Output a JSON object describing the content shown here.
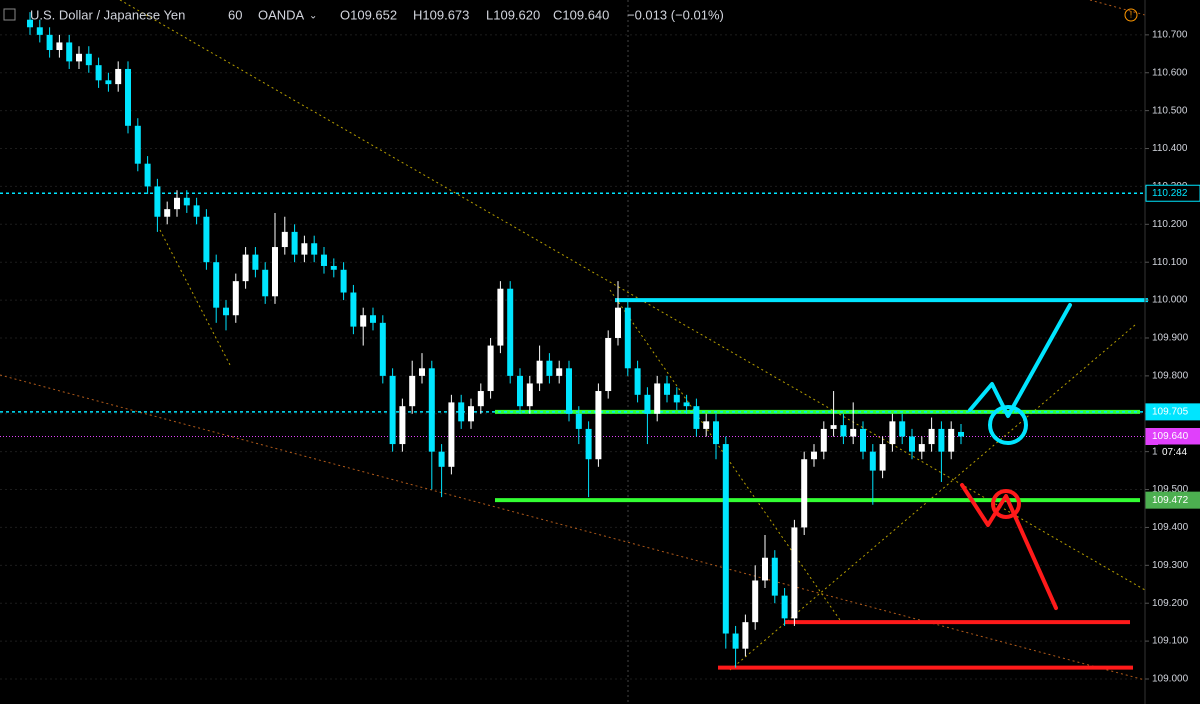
{
  "chart_data": {
    "type": "candlestick",
    "symbol": "U.S. Dollar / Japanese Yen",
    "interval": "60",
    "source": "OANDA",
    "ohlc_labels": [
      "O109.652",
      "H109.673",
      "L109.620",
      "C109.640",
      "−0.013 (−0.01%)"
    ],
    "up_color": "#ffffff",
    "down_color": "#00e5ff",
    "open": [
      110.74,
      110.72,
      110.7,
      110.66,
      110.68,
      110.63,
      110.65,
      110.62,
      110.58,
      110.57,
      110.61,
      110.46,
      110.36,
      110.3,
      110.22,
      110.24,
      110.27,
      110.25,
      110.22,
      110.1,
      109.98,
      109.96,
      110.05,
      110.12,
      110.08,
      110.01,
      110.14,
      110.18,
      110.12,
      110.15,
      110.12,
      110.09,
      110.08,
      110.02,
      109.93,
      109.96,
      109.94,
      109.8,
      109.62,
      109.72,
      109.8,
      109.82,
      109.6,
      109.56,
      109.73,
      109.68,
      109.72,
      109.76,
      109.88,
      110.03,
      109.8,
      109.72,
      109.78,
      109.84,
      109.8,
      109.82,
      109.7,
      109.66,
      109.58,
      109.76,
      109.9,
      109.98,
      109.82,
      109.75,
      109.7,
      109.78,
      109.75,
      109.73,
      109.72,
      109.66,
      109.68,
      109.62,
      109.12,
      109.08,
      109.15,
      109.26,
      109.32,
      109.22,
      109.16,
      109.4,
      109.58,
      109.6,
      109.66,
      109.67,
      109.64,
      109.66,
      109.6,
      109.55,
      109.62,
      109.68,
      109.64,
      109.6,
      109.62,
      109.66,
      109.6,
      109.652
    ],
    "high": [
      110.76,
      110.74,
      110.72,
      110.7,
      110.7,
      110.67,
      110.67,
      110.64,
      110.6,
      110.63,
      110.63,
      110.48,
      110.38,
      110.32,
      110.26,
      110.29,
      110.29,
      110.27,
      110.24,
      110.12,
      110.0,
      110.07,
      110.14,
      110.14,
      110.1,
      110.23,
      110.22,
      110.2,
      110.17,
      110.17,
      110.14,
      110.11,
      110.1,
      110.04,
      109.98,
      109.98,
      109.96,
      109.82,
      109.74,
      109.84,
      109.86,
      109.84,
      109.62,
      109.75,
      109.75,
      109.74,
      109.78,
      109.9,
      110.05,
      110.05,
      109.82,
      109.8,
      109.88,
      109.86,
      109.84,
      109.84,
      109.72,
      109.68,
      109.78,
      109.92,
      110.05,
      110.0,
      109.84,
      109.77,
      109.8,
      109.8,
      109.77,
      109.75,
      109.74,
      109.7,
      109.7,
      109.64,
      109.14,
      109.17,
      109.3,
      109.38,
      109.34,
      109.24,
      109.42,
      109.6,
      109.62,
      109.68,
      109.76,
      109.7,
      109.73,
      109.68,
      109.62,
      109.64,
      109.7,
      109.7,
      109.66,
      109.64,
      109.69,
      109.68,
      109.68,
      109.673
    ],
    "low": [
      110.7,
      110.68,
      110.64,
      110.64,
      110.61,
      110.61,
      110.6,
      110.56,
      110.55,
      110.55,
      110.44,
      110.34,
      110.28,
      110.18,
      110.2,
      110.22,
      110.23,
      110.2,
      110.08,
      109.94,
      109.92,
      109.94,
      110.03,
      110.06,
      109.99,
      109.99,
      110.12,
      110.1,
      110.1,
      110.1,
      110.07,
      110.06,
      110.0,
      109.91,
      109.88,
      109.92,
      109.78,
      109.6,
      109.6,
      109.7,
      109.78,
      109.5,
      109.48,
      109.54,
      109.66,
      109.66,
      109.7,
      109.74,
      109.86,
      109.78,
      109.7,
      109.7,
      109.76,
      109.78,
      109.78,
      109.68,
      109.62,
      109.48,
      109.56,
      109.74,
      109.88,
      109.8,
      109.73,
      109.62,
      109.68,
      109.73,
      109.71,
      109.7,
      109.64,
      109.64,
      109.58,
      109.08,
      109.03,
      109.06,
      109.13,
      109.24,
      109.2,
      109.14,
      109.14,
      109.38,
      109.56,
      109.58,
      109.64,
      109.62,
      109.62,
      109.58,
      109.46,
      109.53,
      109.6,
      109.62,
      109.58,
      109.58,
      109.6,
      109.52,
      109.58,
      109.62
    ],
    "close": [
      110.72,
      110.7,
      110.66,
      110.68,
      110.63,
      110.65,
      110.62,
      110.58,
      110.57,
      110.61,
      110.46,
      110.36,
      110.3,
      110.22,
      110.24,
      110.27,
      110.25,
      110.22,
      110.1,
      109.98,
      109.96,
      110.05,
      110.12,
      110.08,
      110.01,
      110.14,
      110.18,
      110.12,
      110.15,
      110.12,
      110.09,
      110.08,
      110.02,
      109.93,
      109.96,
      109.94,
      109.8,
      109.62,
      109.72,
      109.8,
      109.82,
      109.6,
      109.56,
      109.73,
      109.68,
      109.72,
      109.76,
      109.88,
      110.03,
      109.8,
      109.72,
      109.78,
      109.84,
      109.8,
      109.82,
      109.7,
      109.66,
      109.58,
      109.76,
      109.9,
      109.98,
      109.82,
      109.75,
      109.7,
      109.78,
      109.75,
      109.73,
      109.72,
      109.66,
      109.68,
      109.62,
      109.12,
      109.08,
      109.15,
      109.26,
      109.32,
      109.22,
      109.16,
      109.4,
      109.58,
      109.6,
      109.66,
      109.67,
      109.64,
      109.66,
      109.6,
      109.55,
      109.62,
      109.68,
      109.64,
      109.6,
      109.62,
      109.66,
      109.6,
      109.66,
      109.64
    ],
    "ylim": [
      108.934,
      110.792
    ],
    "yticks": [
      {
        "value": 109.0,
        "label": "109.000"
      },
      {
        "value": 109.1,
        "label": "109.100"
      },
      {
        "value": 109.2,
        "label": "109.200"
      },
      {
        "value": 109.3,
        "label": "109.300"
      },
      {
        "value": 109.4,
        "label": "109.400"
      },
      {
        "value": 109.5,
        "label": "109.500"
      },
      {
        "value": 109.6,
        "label": "109.600"
      },
      {
        "value": 109.7,
        "label": "109.700"
      },
      {
        "value": 109.8,
        "label": "109.800"
      },
      {
        "value": 109.9,
        "label": "109.900"
      },
      {
        "value": 110.0,
        "label": "110.000"
      },
      {
        "value": 110.1,
        "label": "110.100"
      },
      {
        "value": 110.2,
        "label": "110.200"
      },
      {
        "value": 110.3,
        "label": "110.300"
      },
      {
        "value": 110.4,
        "label": "110.400"
      },
      {
        "value": 110.5,
        "label": "110.500"
      },
      {
        "value": 110.6,
        "label": "110.600"
      },
      {
        "value": 110.7,
        "label": "110.700"
      }
    ],
    "price_tags": [
      {
        "value": 110.282,
        "label": "110.282",
        "color": "#00e5ff"
      },
      {
        "value": 109.705,
        "label": "109.705",
        "color": "#00e5ff"
      },
      {
        "value": 109.64,
        "label": "109.640",
        "color": "#e040fb"
      },
      {
        "value": 109.472,
        "label": "109.472",
        "color": "#4caf50"
      }
    ],
    "countdown": "07:44",
    "drawn_levels": [
      {
        "value": 110.0,
        "color": "#00e5ff"
      },
      {
        "value": 109.705,
        "color": "#33ff33"
      },
      {
        "value": 109.472,
        "color": "#33ff33"
      },
      {
        "value": 109.15,
        "color": "#ff1a1a"
      },
      {
        "value": 109.03,
        "color": "#ff1a1a"
      }
    ]
  }
}
